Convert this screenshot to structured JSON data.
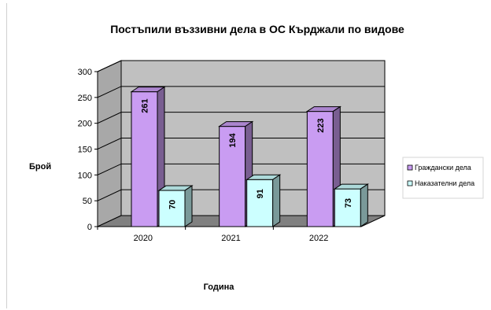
{
  "chart_data": {
    "type": "bar",
    "title": "Постъпили въззивни дела в ОС Кърджали по видове",
    "xlabel": "Година",
    "ylabel": "Брой",
    "categories": [
      "2020",
      "2021",
      "2022"
    ],
    "ylim": [
      0,
      300
    ],
    "yticks": [
      "0",
      "50",
      "100",
      "150",
      "200",
      "250",
      "300"
    ],
    "grid": true,
    "legend_position": "right",
    "series": [
      {
        "name": "Граждански дела",
        "values": [
          261,
          194,
          223
        ],
        "color": "#c99cf2"
      },
      {
        "name": "Наказателни дела",
        "values": [
          70,
          91,
          73
        ],
        "color": "#ccffff"
      }
    ],
    "colors": {
      "wall": "#c0c0c0",
      "floor": "#808080",
      "grid": "#000000"
    }
  }
}
